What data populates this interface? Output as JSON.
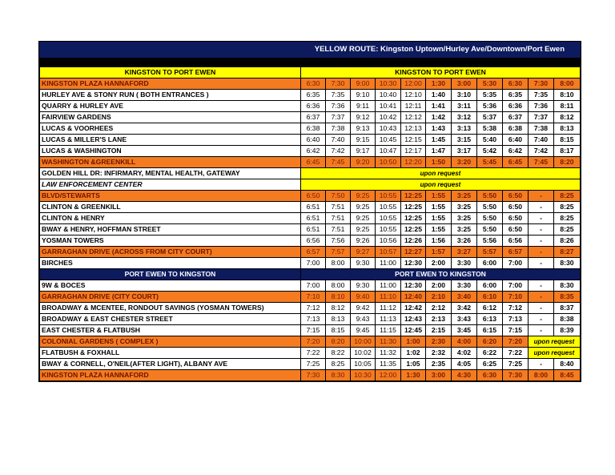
{
  "title": "YELLOW ROUTE:  Kingston Uptown/Hurley Ave/Downtown/Port Ewen",
  "colors": {
    "orange": "#f47b20",
    "yellow": "#ffff00",
    "navy": "#0d1a5e"
  },
  "sections": [
    {
      "label": "KINGSTON TO PORT EWEN",
      "times_label": "KINGSTON TO PORT EWEN",
      "header_style": "yellow",
      "rows": [
        {
          "stop": "KINGSTON PLAZA HANNAFORD",
          "style": "orange",
          "times": [
            "6:30",
            "7:30",
            "9:00",
            "10:30",
            "12:00",
            "1:30",
            "3:00",
            "5:30",
            "6:30",
            "7:30",
            "8:00"
          ]
        },
        {
          "stop": "HURLEY AVE & STONY RUN ( BOTH ENTRANCES )",
          "style": "white",
          "times": [
            "6:35",
            "7:35",
            "9:10",
            "10:40",
            "12:10",
            "1:40",
            "3:10",
            "5:35",
            "6:35",
            "7:35",
            "8:10"
          ]
        },
        {
          "stop": "QUARRY & HURLEY AVE",
          "style": "white",
          "times": [
            "6:36",
            "7:36",
            "9:11",
            "10:41",
            "12:11",
            "1:41",
            "3:11",
            "5:36",
            "6:36",
            "7:36",
            "8:11"
          ]
        },
        {
          "stop": "FAIRVIEW GARDENS",
          "style": "white",
          "times": [
            "6:37",
            "7:37",
            "9:12",
            "10:42",
            "12:12",
            "1:42",
            "3:12",
            "5:37",
            "6:37",
            "7:37",
            "8:12"
          ]
        },
        {
          "stop": "LUCAS & VOORHEES",
          "style": "white",
          "times": [
            "6:38",
            "7:38",
            "9:13",
            "10:43",
            "12:13",
            "1:43",
            "3:13",
            "5:38",
            "6:38",
            "7:38",
            "8:13"
          ]
        },
        {
          "stop": "LUCAS & MILLER'S LANE",
          "style": "white",
          "times": [
            "6:40",
            "7:40",
            "9:15",
            "10:45",
            "12:15",
            "1:45",
            "3:15",
            "5:40",
            "6:40",
            "7:40",
            "8:15"
          ]
        },
        {
          "stop": "LUCAS & WASHINGTON",
          "style": "white",
          "times": [
            "6:42",
            "7:42",
            "9:17",
            "10:47",
            "12:17",
            "1:47",
            "3:17",
            "5:42",
            "6:42",
            "7:42",
            "8:17"
          ]
        },
        {
          "stop": "WASHINGTON &GREENKILL",
          "style": "orange",
          "times": [
            "6:45",
            "7:45",
            "9:20",
            "10:50",
            "12:20",
            "1:50",
            "3:20",
            "5:45",
            "6:45",
            "7:45",
            "8:20"
          ]
        },
        {
          "stop": "GOLDEN HILL DR: INFIRMARY, MENTAL HEALTH, GATEWAY",
          "style": "white",
          "request": "upon request"
        },
        {
          "stop": "LAW ENFORCEMENT CENTER",
          "style": "white",
          "italic": true,
          "request": "upon request"
        },
        {
          "stop": "BLVD/STEWARTS",
          "style": "orange",
          "times": [
            "6:50",
            "7:50",
            "9:25",
            "10:55",
            "12:25",
            "1:55",
            "3:25",
            "5:50",
            "6:50",
            "-",
            "8:25"
          ]
        },
        {
          "stop": "CLINTON & GREENKILL",
          "style": "white",
          "times": [
            "6:51",
            "7:51",
            "9:25",
            "10:55",
            "12:25",
            "1:55",
            "3:25",
            "5:50",
            "6:50",
            "-",
            "8:25"
          ]
        },
        {
          "stop": "CLINTON & HENRY",
          "style": "white",
          "times": [
            "6:51",
            "7:51",
            "9:25",
            "10:55",
            "12:25",
            "1:55",
            "3:25",
            "5:50",
            "6:50",
            "-",
            "8:25"
          ]
        },
        {
          "stop": "BWAY & HENRY, HOFFMAN STREET",
          "style": "white",
          "times": [
            "6:51",
            "7:51",
            "9:25",
            "10:55",
            "12:25",
            "1:55",
            "3:25",
            "5:50",
            "6:50",
            "-",
            "8:25"
          ]
        },
        {
          "stop": "YOSMAN TOWERS",
          "style": "white",
          "times": [
            "6:56",
            "7:56",
            "9:26",
            "10:56",
            "12:26",
            "1:56",
            "3:26",
            "5:56",
            "6:56",
            "-",
            "8:26"
          ]
        },
        {
          "stop": "GARRAGHAN DRIVE (ACROSS FROM CITY COURT)",
          "style": "orange",
          "times": [
            "6:57",
            "7:57",
            "9:27",
            "10:57",
            "12:27",
            "1:57",
            "3:27",
            "5:57",
            "6:57",
            "-",
            "8:27"
          ]
        },
        {
          "stop": "BIRCHES",
          "style": "white",
          "times": [
            "7:00",
            "8:00",
            "9:30",
            "11:00",
            "12:30",
            "2:00",
            "3:30",
            "6:00",
            "7:00",
            "-",
            "8:30"
          ]
        }
      ]
    },
    {
      "label": "PORT EWEN TO KINGSTON",
      "times_label": "PORT EWEN TO KINGSTON",
      "header_style": "navy",
      "rows": [
        {
          "stop": "9W & BOCES",
          "style": "white",
          "times": [
            "7:00",
            "8:00",
            "9:30",
            "11:00",
            "12:30",
            "2:00",
            "3:30",
            "6:00",
            "7:00",
            "-",
            "8:30"
          ]
        },
        {
          "stop": "GARRAGHAN DRIVE (CITY COURT)",
          "style": "orange",
          "times": [
            "7:10",
            "8:10",
            "9:40",
            "11:10",
            "12:40",
            "2:10",
            "3:40",
            "6:10",
            "7:10",
            "-",
            "8:35"
          ]
        },
        {
          "stop": "BROADWAY & MCENTEE, RONDOUT SAVINGS (YOSMAN TOWERS)",
          "style": "white",
          "times": [
            "7:12",
            "8:12",
            "9:42",
            "11:12",
            "12:42",
            "2:12",
            "3:42",
            "6:12",
            "7:12",
            "-",
            "8:37"
          ]
        },
        {
          "stop": "BROADWAY & EAST CHESTER STREET",
          "style": "white",
          "times": [
            "7:13",
            "8:13",
            "9:43",
            "11:13",
            "12:43",
            "2:13",
            "3:43",
            "6:13",
            "7:13",
            "-",
            "8:38"
          ]
        },
        {
          "stop": "EAST CHESTER & FLATBUSH",
          "style": "white",
          "times": [
            "7:15",
            "8:15",
            "9:45",
            "11:15",
            "12:45",
            "2:15",
            "3:45",
            "6:15",
            "7:15",
            "-",
            "8:39"
          ]
        },
        {
          "stop": "COLONIAL GARDENS ( COMPLEX )",
          "style": "orange",
          "times": [
            "7:20",
            "8:20",
            "10:00",
            "11:30",
            "1:00",
            "2:30",
            "4:00",
            "6:20",
            "7:20"
          ],
          "tail_request": "upon request"
        },
        {
          "stop": "FLATBUSH & FOXHALL",
          "style": "white",
          "times": [
            "7:22",
            "8:22",
            "10:02",
            "11:32",
            "1:02",
            "2:32",
            "4:02",
            "6:22",
            "7:22"
          ],
          "tail_request": "upon request"
        },
        {
          "stop": "BWAY & CORNELL, O'NEIL(AFTER LIGHT), ALBANY AVE",
          "style": "white",
          "times": [
            "7:25",
            "8:25",
            "10:05",
            "11:35",
            "1:05",
            "2:35",
            "4:05",
            "6:25",
            "7:25",
            "-",
            "8:40"
          ]
        },
        {
          "stop": "KINGSTON PLAZA HANNAFORD",
          "style": "orange",
          "times": [
            "7:30",
            "8:30",
            "10:30",
            "12:00",
            "1:30",
            "3:00",
            "4:30",
            "6:30",
            "7:30",
            "8:00",
            "8:45"
          ]
        }
      ]
    }
  ]
}
